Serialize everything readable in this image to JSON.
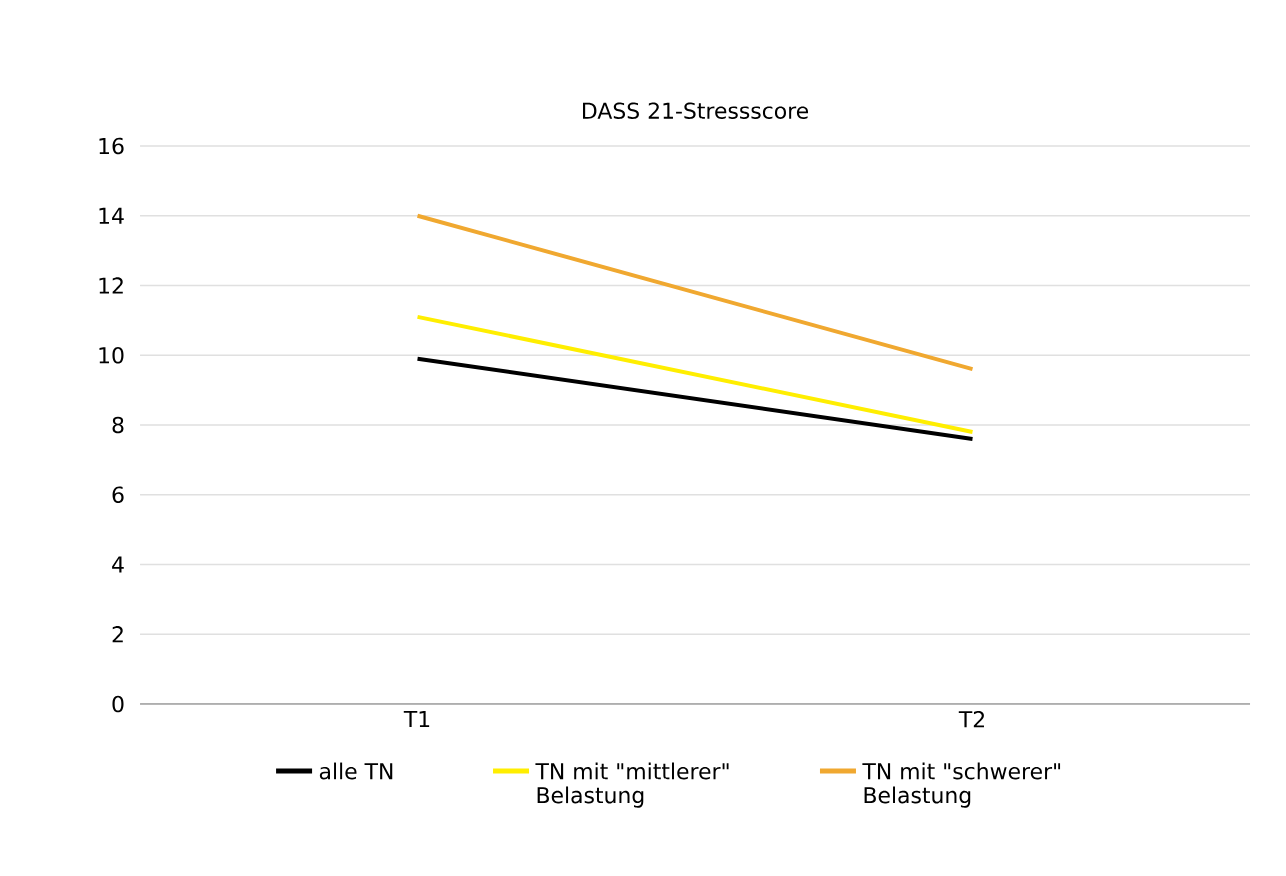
{
  "chart_data": {
    "type": "line",
    "title": "DASS 21-Stressscore",
    "categories": [
      "T1",
      "T2"
    ],
    "series": [
      {
        "name": "alle TN",
        "color": "#000000",
        "values": [
          9.9,
          7.6
        ]
      },
      {
        "name": "TN mit \"mittlerer\" Belastung",
        "color": "#ffee00",
        "values": [
          11.1,
          7.8
        ]
      },
      {
        "name": "TN mit \"schwerer\" Belastung",
        "color": "#f0a830",
        "values": [
          14.0,
          9.6
        ]
      }
    ],
    "ylim": [
      0,
      16
    ],
    "yticks": [
      0,
      2,
      4,
      6,
      8,
      10,
      12,
      14,
      16
    ],
    "grid": "y",
    "legend": "bottom",
    "marker": "none",
    "line_style": "solid"
  }
}
